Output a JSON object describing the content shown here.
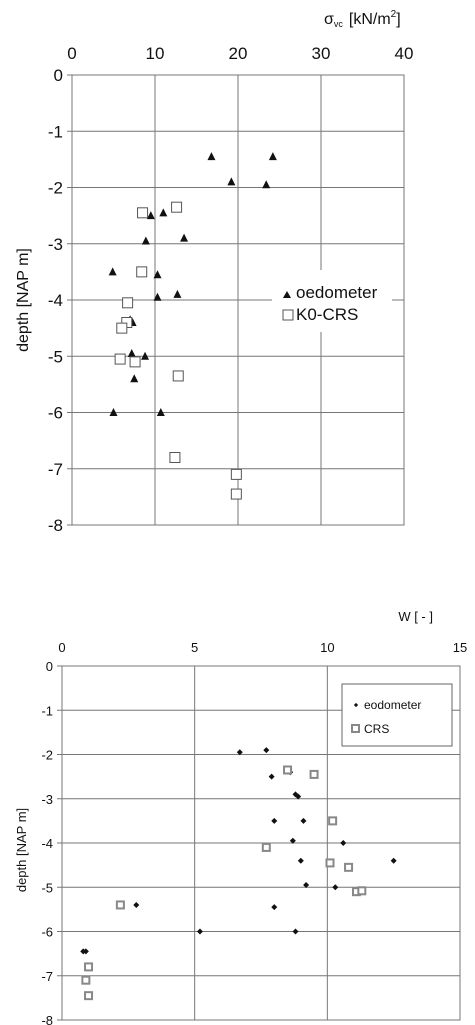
{
  "chart_data": [
    {
      "type": "scatter",
      "xlabel_main": "σ",
      "xlabel_sub": "vc",
      "xlabel_unit": "[kN/m",
      "xlabel_sup": "2",
      "xlabel_close": "]",
      "ylabel": "depth [NAP m]",
      "xlim": [
        0,
        40
      ],
      "ylim": [
        -8,
        0
      ],
      "x_ticks": [
        "0",
        "10",
        "20",
        "30",
        "40"
      ],
      "y_ticks": [
        "0",
        "-1",
        "-2",
        "-3",
        "-4",
        "-5",
        "-6",
        "-7",
        "-8"
      ],
      "x_axis_position": "top",
      "grid": true,
      "legend_position": "right",
      "series": [
        {
          "name": "oedometer",
          "marker": "triangle-filled",
          "points": [
            [
              16.8,
              -1.45
            ],
            [
              24.2,
              -1.45
            ],
            [
              19.2,
              -1.9
            ],
            [
              23.4,
              -1.95
            ],
            [
              11.0,
              -2.45
            ],
            [
              9.5,
              -2.5
            ],
            [
              13.5,
              -2.9
            ],
            [
              8.9,
              -2.95
            ],
            [
              4.9,
              -3.5
            ],
            [
              10.3,
              -3.55
            ],
            [
              10.3,
              -3.95
            ],
            [
              12.7,
              -3.9
            ],
            [
              7.0,
              -4.35
            ],
            [
              7.3,
              -4.4
            ],
            [
              7.2,
              -4.95
            ],
            [
              8.8,
              -5.0
            ],
            [
              7.5,
              -5.4
            ],
            [
              5.0,
              -6.0
            ],
            [
              10.7,
              -6.0
            ]
          ]
        },
        {
          "name": "K0-CRS",
          "marker": "square-open",
          "points": [
            [
              8.5,
              -2.45
            ],
            [
              12.6,
              -2.35
            ],
            [
              8.4,
              -3.5
            ],
            [
              6.7,
              -4.05
            ],
            [
              6.6,
              -4.4
            ],
            [
              6.0,
              -4.5
            ],
            [
              5.8,
              -5.05
            ],
            [
              7.6,
              -5.1
            ],
            [
              12.8,
              -5.35
            ],
            [
              12.4,
              -6.8
            ],
            [
              19.8,
              -7.1
            ],
            [
              19.8,
              -7.45
            ]
          ]
        }
      ]
    },
    {
      "type": "scatter",
      "xlabel": "W [ - ]",
      "ylabel": "depth [NAP  m]",
      "xlim": [
        0,
        15
      ],
      "ylim": [
        -8,
        0
      ],
      "x_ticks": [
        "0",
        "5",
        "10",
        "15"
      ],
      "y_ticks": [
        "0",
        "-1",
        "-2",
        "-3",
        "-4",
        "-5",
        "-6",
        "-7",
        "-8"
      ],
      "x_axis_position": "top",
      "grid": true,
      "legend_position": "top-right",
      "series": [
        {
          "name": "eodometer",
          "marker": "diamond-filled",
          "points": [
            [
              6.7,
              -1.95
            ],
            [
              7.7,
              -1.9
            ],
            [
              7.9,
              -2.5
            ],
            [
              8.6,
              -2.4
            ],
            [
              8.8,
              -2.9
            ],
            [
              8.9,
              -2.95
            ],
            [
              8.0,
              -3.5
            ],
            [
              9.1,
              -3.5
            ],
            [
              8.7,
              -3.95
            ],
            [
              10.6,
              -4.0
            ],
            [
              9.0,
              -4.4
            ],
            [
              12.5,
              -4.4
            ],
            [
              9.2,
              -4.95
            ],
            [
              10.3,
              -5.0
            ],
            [
              8.0,
              -5.45
            ],
            [
              2.8,
              -5.4
            ],
            [
              8.8,
              -6.0
            ],
            [
              5.2,
              -6.0
            ],
            [
              0.8,
              -6.45
            ],
            [
              0.9,
              -6.45
            ]
          ]
        },
        {
          "name": "CRS",
          "marker": "square-open",
          "points": [
            [
              8.5,
              -2.35
            ],
            [
              9.5,
              -2.45
            ],
            [
              10.2,
              -3.5
            ],
            [
              7.7,
              -4.1
            ],
            [
              10.1,
              -4.45
            ],
            [
              10.8,
              -4.55
            ],
            [
              11.1,
              -5.1
            ],
            [
              11.3,
              -5.08
            ],
            [
              2.2,
              -5.4
            ],
            [
              1.0,
              -6.8
            ],
            [
              0.9,
              -7.1
            ],
            [
              1.0,
              -7.45
            ]
          ]
        }
      ]
    }
  ]
}
